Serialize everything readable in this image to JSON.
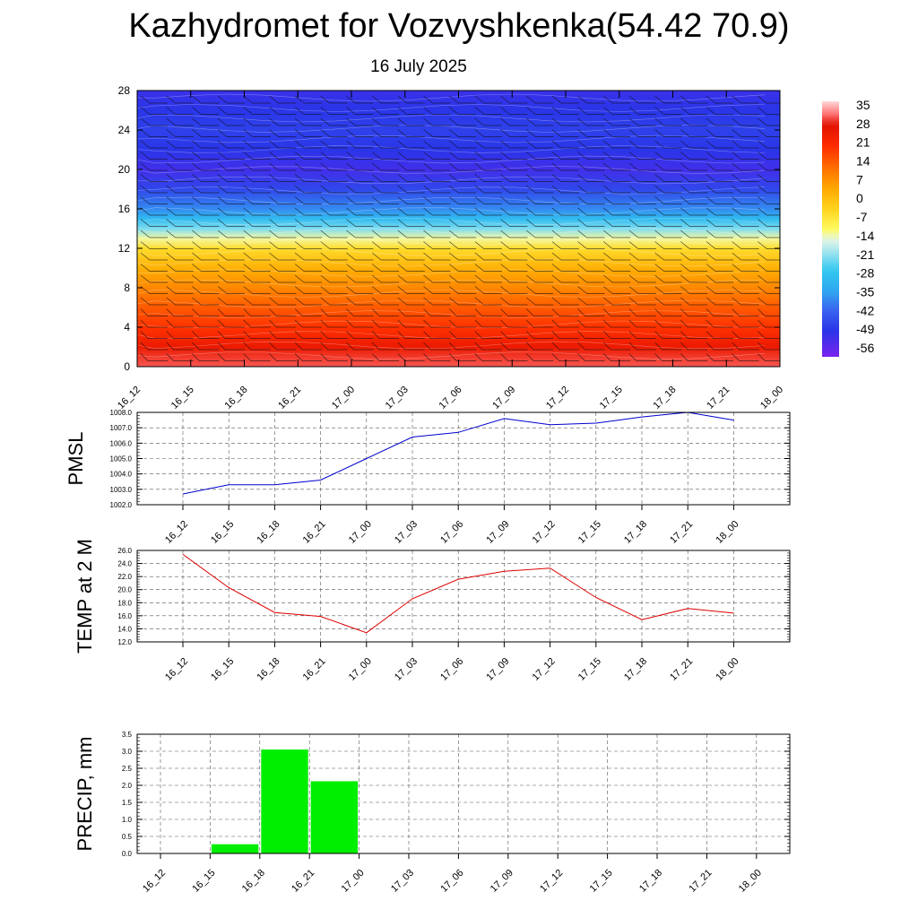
{
  "page": {
    "title": "Kazhydromet for Vozvyshkenka(54.42 70.9)",
    "subtitle": "16 July 2025"
  },
  "colors": {
    "pmsl_line": "#0000cc",
    "temp_line": "#dd0000",
    "precip_bar": "#00ee00",
    "grid": "#666666"
  },
  "chart_data": [
    {
      "type": "heatmap",
      "name": "vertical-cross-section",
      "x_ticks": [
        "16_12",
        "16_15",
        "16_18",
        "16_21",
        "17_00",
        "17_03",
        "17_06",
        "17_09",
        "17_12",
        "17_15",
        "17_18",
        "17_21",
        "18_00"
      ],
      "y_ticks": [
        "0",
        "4",
        "8",
        "12",
        "16",
        "20",
        "24",
        "28"
      ],
      "ylim": [
        0,
        28
      ],
      "colorbar_labels": [
        "35",
        "28",
        "21",
        "14",
        "7",
        "0",
        "-7",
        "-14",
        "-21",
        "-28",
        "-35",
        "-42",
        "-49",
        "-56"
      ],
      "colorbar_range": [
        -60,
        38
      ],
      "level_values": [
        {
          "y": 0,
          "v": 32
        },
        {
          "y": 2,
          "v": 26
        },
        {
          "y": 4,
          "v": 20
        },
        {
          "y": 6,
          "v": 15
        },
        {
          "y": 8,
          "v": 9
        },
        {
          "y": 10,
          "v": 3
        },
        {
          "y": 12,
          "v": -5
        },
        {
          "y": 13,
          "v": -13
        },
        {
          "y": 14,
          "v": -22
        },
        {
          "y": 15,
          "v": -30
        },
        {
          "y": 16,
          "v": -38
        },
        {
          "y": 18,
          "v": -47
        },
        {
          "y": 20,
          "v": -53
        },
        {
          "y": 22,
          "v": -50
        },
        {
          "y": 24,
          "v": -48
        },
        {
          "y": 26,
          "v": -50
        },
        {
          "y": 28,
          "v": -52
        }
      ],
      "wind_barbs": true
    },
    {
      "type": "line",
      "name": "pmsl",
      "ylabel": "PMSL",
      "x": [
        "16_12",
        "16_15",
        "16_18",
        "16_21",
        "17_00",
        "17_03",
        "17_06",
        "17_09",
        "17_12",
        "17_15",
        "17_18",
        "17_21",
        "18_00"
      ],
      "values": [
        1002.7,
        1003.3,
        1003.3,
        1003.6,
        1005.0,
        1006.4,
        1006.7,
        1007.6,
        1007.2,
        1007.3,
        1007.7,
        1008.0,
        1007.5
      ],
      "ylim": [
        1002.0,
        1008.0
      ],
      "y_ticks": [
        "1002.0",
        "1003.0",
        "1004.0",
        "1005.0",
        "1006.0",
        "1007.0",
        "1008.0"
      ],
      "grid": true
    },
    {
      "type": "line",
      "name": "temp",
      "ylabel": "TEMP at 2 M",
      "x": [
        "16_12",
        "16_15",
        "16_18",
        "16_21",
        "17_00",
        "17_03",
        "17_06",
        "17_09",
        "17_12",
        "17_15",
        "17_18",
        "17_21",
        "18_00"
      ],
      "values": [
        25.4,
        20.3,
        16.5,
        15.9,
        13.4,
        18.6,
        21.6,
        22.8,
        23.3,
        18.8,
        15.4,
        17.1,
        16.4
      ],
      "ylim": [
        12.0,
        26.0
      ],
      "y_ticks": [
        "12.0",
        "14.0",
        "16.0",
        "18.0",
        "20.0",
        "22.0",
        "24.0",
        "26.0"
      ],
      "grid": true
    },
    {
      "type": "bar",
      "name": "precip",
      "ylabel": "PRECIP, mm",
      "categories": [
        "16_12",
        "16_15",
        "16_18",
        "16_21",
        "17_00",
        "17_03",
        "17_06",
        "17_09",
        "17_12",
        "17_15",
        "17_18",
        "17_21",
        "18_00"
      ],
      "values": [
        0,
        0.27,
        3.05,
        2.12,
        0,
        0,
        0,
        0,
        0,
        0,
        0,
        0,
        0
      ],
      "ylim": [
        0,
        3.5
      ],
      "y_ticks": [
        "0.0",
        "0.5",
        "1.0",
        "1.5",
        "2.0",
        "2.5",
        "3.0",
        "3.5"
      ],
      "grid": true
    }
  ]
}
